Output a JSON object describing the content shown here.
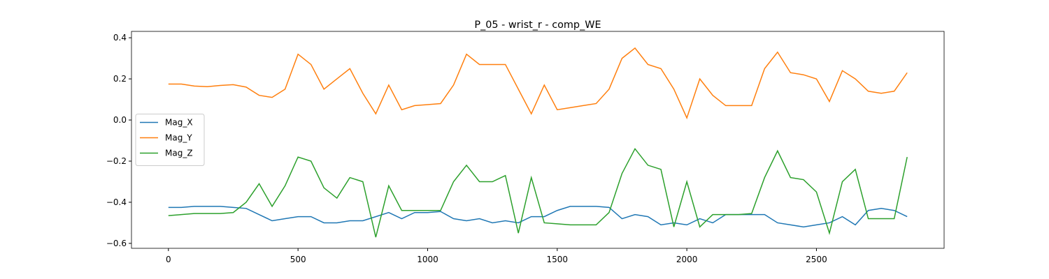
{
  "chart_data": {
    "type": "line",
    "title": "P_05 - wrist_r - comp_WE",
    "x": [
      0,
      50,
      100,
      150,
      200,
      250,
      300,
      350,
      400,
      450,
      500,
      550,
      600,
      650,
      700,
      750,
      800,
      850,
      900,
      950,
      1000,
      1050,
      1100,
      1150,
      1200,
      1250,
      1300,
      1350,
      1400,
      1450,
      1500,
      1550,
      1600,
      1650,
      1700,
      1750,
      1800,
      1850,
      1900,
      1950,
      2000,
      2050,
      2100,
      2150,
      2200,
      2250,
      2300,
      2350,
      2400,
      2450,
      2500,
      2550,
      2600,
      2650,
      2700,
      2750,
      2800,
      2850
    ],
    "series": [
      {
        "name": "Mag_X",
        "color": "#1f77b4",
        "values": [
          -0.425,
          -0.425,
          -0.42,
          -0.42,
          -0.42,
          -0.425,
          -0.43,
          -0.46,
          -0.49,
          -0.48,
          -0.47,
          -0.47,
          -0.5,
          -0.5,
          -0.49,
          -0.49,
          -0.47,
          -0.45,
          -0.48,
          -0.45,
          -0.45,
          -0.445,
          -0.48,
          -0.49,
          -0.48,
          -0.5,
          -0.49,
          -0.5,
          -0.47,
          -0.47,
          -0.44,
          -0.42,
          -0.42,
          -0.42,
          -0.425,
          -0.48,
          -0.46,
          -0.47,
          -0.51,
          -0.5,
          -0.51,
          -0.48,
          -0.5,
          -0.46,
          -0.46,
          -0.46,
          -0.46,
          -0.5,
          -0.51,
          -0.52,
          -0.51,
          -0.5,
          -0.47,
          -0.51,
          -0.44,
          -0.43,
          -0.44,
          -0.47
        ]
      },
      {
        "name": "Mag_Y",
        "color": "#ff7f0e",
        "values": [
          0.175,
          0.175,
          0.165,
          0.162,
          0.168,
          0.172,
          0.16,
          0.12,
          0.11,
          0.15,
          0.32,
          0.27,
          0.15,
          0.2,
          0.25,
          0.13,
          0.03,
          0.17,
          0.05,
          0.07,
          0.075,
          0.08,
          0.17,
          0.32,
          0.27,
          0.27,
          0.27,
          0.15,
          0.03,
          0.17,
          0.05,
          0.06,
          0.07,
          0.08,
          0.15,
          0.3,
          0.35,
          0.27,
          0.25,
          0.15,
          0.01,
          0.2,
          0.12,
          0.07,
          0.07,
          0.07,
          0.25,
          0.33,
          0.23,
          0.22,
          0.2,
          0.09,
          0.24,
          0.2,
          0.14,
          0.13,
          0.14,
          0.23
        ]
      },
      {
        "name": "Mag_Z",
        "color": "#2ca02c",
        "values": [
          -0.465,
          -0.46,
          -0.455,
          -0.455,
          -0.455,
          -0.45,
          -0.4,
          -0.31,
          -0.42,
          -0.32,
          -0.18,
          -0.2,
          -0.33,
          -0.38,
          -0.28,
          -0.3,
          -0.57,
          -0.32,
          -0.44,
          -0.44,
          -0.44,
          -0.44,
          -0.3,
          -0.22,
          -0.3,
          -0.3,
          -0.27,
          -0.55,
          -0.28,
          -0.5,
          -0.505,
          -0.51,
          -0.51,
          -0.51,
          -0.45,
          -0.26,
          -0.14,
          -0.22,
          -0.24,
          -0.52,
          -0.3,
          -0.52,
          -0.46,
          -0.46,
          -0.46,
          -0.455,
          -0.28,
          -0.15,
          -0.28,
          -0.29,
          -0.35,
          -0.55,
          -0.3,
          -0.24,
          -0.48,
          -0.48,
          -0.48,
          -0.18
        ]
      }
    ],
    "xlim": [
      -142.5,
      2992.5
    ],
    "xticks": [
      0,
      500,
      1000,
      1500,
      2000,
      2500
    ],
    "ylim": [
      -0.624,
      0.431
    ],
    "yticks": [
      {
        "value": -0.6,
        "label": "−0.6"
      },
      {
        "value": -0.4,
        "label": "−0.4"
      },
      {
        "value": -0.2,
        "label": "−0.2"
      },
      {
        "value": 0.0,
        "label": "0.0"
      },
      {
        "value": 0.2,
        "label": "0.2"
      },
      {
        "value": 0.4,
        "label": "0.4"
      }
    ],
    "grid": false,
    "legend": "center left"
  }
}
